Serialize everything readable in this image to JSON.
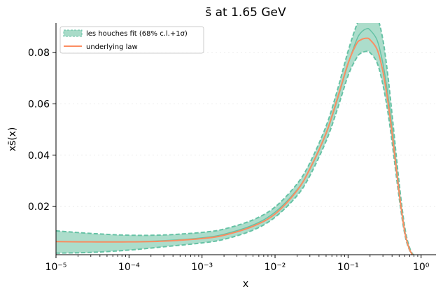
{
  "chart_data": {
    "type": "line",
    "title": "s̄ at 1.65 GeV",
    "xlabel": "x",
    "ylabel": "xs̄(x)",
    "xscale": "log",
    "xlim": [
      1e-05,
      1.6
    ],
    "ylim": [
      0.0012,
      0.0915
    ],
    "x_ticks": [
      {
        "value": 1e-05,
        "label": "10⁻⁵"
      },
      {
        "value": 0.0001,
        "label": "10⁻⁴"
      },
      {
        "value": 0.001,
        "label": "10⁻³"
      },
      {
        "value": 0.01,
        "label": "10⁻²"
      },
      {
        "value": 0.1,
        "label": "10⁻¹"
      },
      {
        "value": 1,
        "label": "10⁰"
      }
    ],
    "y_ticks": [
      {
        "value": 0.02,
        "label": "0.02"
      },
      {
        "value": 0.04,
        "label": "0.04"
      },
      {
        "value": 0.06,
        "label": "0.06"
      },
      {
        "value": 0.08,
        "label": "0.08"
      }
    ],
    "grid": "horizontal-faint",
    "legend_position": "top-left",
    "x": [
      1e-05,
      3e-05,
      0.0001,
      0.0003,
      0.001,
      0.002,
      0.005,
      0.01,
      0.02,
      0.03,
      0.05,
      0.07,
      0.1,
      0.13,
      0.15,
      0.18,
      0.2,
      0.25,
      0.3,
      0.35,
      0.4,
      0.5,
      0.6,
      0.7,
      0.8,
      0.85
    ],
    "series": [
      {
        "name": "les houches fit (68% c.l.+1σ)",
        "style": "band",
        "color": "#66c2a5",
        "fill": "#a8dbc8",
        "central": [
          0.0064,
          0.0063,
          0.0063,
          0.0067,
          0.0078,
          0.0092,
          0.0128,
          0.0178,
          0.0265,
          0.0345,
          0.0483,
          0.0608,
          0.0755,
          0.0847,
          0.0878,
          0.0893,
          0.0888,
          0.0848,
          0.0757,
          0.0638,
          0.0505,
          0.0262,
          0.0102,
          0.0032,
          0.0006,
          0.0
        ],
        "upper": [
          0.0105,
          0.0095,
          0.0088,
          0.0089,
          0.0099,
          0.0112,
          0.0148,
          0.0198,
          0.0288,
          0.037,
          0.0513,
          0.0645,
          0.0805,
          0.0905,
          0.0942,
          0.097,
          0.097,
          0.094,
          0.085,
          0.0712,
          0.056,
          0.0292,
          0.0116,
          0.0037,
          0.0008,
          0.0
        ],
        "lower": [
          0.0018,
          0.0021,
          0.003,
          0.0043,
          0.0058,
          0.0072,
          0.0108,
          0.0158,
          0.0242,
          0.032,
          0.0455,
          0.0572,
          0.071,
          0.0778,
          0.0798,
          0.0805,
          0.08,
          0.076,
          0.0675,
          0.057,
          0.0452,
          0.0235,
          0.009,
          0.0028,
          0.0005,
          0.0
        ]
      },
      {
        "name": "underlying law",
        "style": "line",
        "color": "#fc8d62",
        "values": [
          0.0063,
          0.0062,
          0.0062,
          0.0065,
          0.0075,
          0.0088,
          0.0123,
          0.0171,
          0.0262,
          0.0347,
          0.0486,
          0.0614,
          0.0758,
          0.0833,
          0.085,
          0.0856,
          0.085,
          0.0812,
          0.0727,
          0.0612,
          0.0488,
          0.0255,
          0.0098,
          0.003,
          0.0005,
          0.0
        ]
      }
    ]
  }
}
